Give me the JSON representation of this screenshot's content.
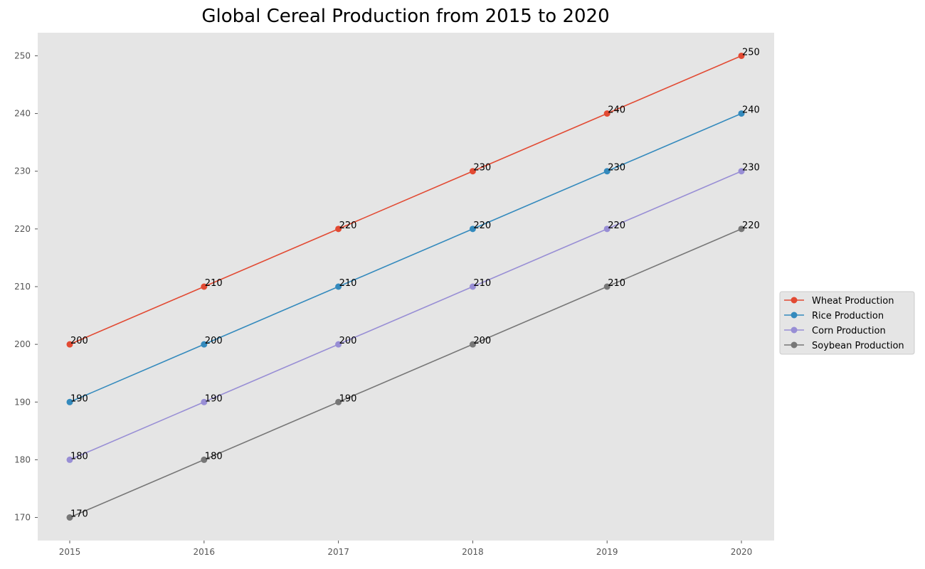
{
  "chart_data": {
    "type": "line",
    "title": "Global Cereal Production from 2015 to 2020",
    "xlabel": "",
    "ylabel": "",
    "x": [
      "2015",
      "2016",
      "2017",
      "2018",
      "2019",
      "2020"
    ],
    "ylim": [
      166,
      254
    ],
    "y_ticks": [
      170,
      180,
      190,
      200,
      210,
      220,
      230,
      240,
      250
    ],
    "grid": false,
    "legend_position": "center-right outside",
    "series": [
      {
        "name": "Wheat Production",
        "color": "#e24a33",
        "values": [
          200,
          210,
          220,
          230,
          240,
          250
        ]
      },
      {
        "name": "Rice Production",
        "color": "#348abd",
        "values": [
          190,
          200,
          210,
          220,
          230,
          240
        ]
      },
      {
        "name": "Corn Production",
        "color": "#988ed5",
        "values": [
          180,
          190,
          200,
          210,
          220,
          230
        ]
      },
      {
        "name": "Soybean Production",
        "color": "#777777",
        "values": [
          170,
          180,
          190,
          200,
          210,
          220
        ]
      }
    ],
    "plot_background": "#e5e5e5"
  }
}
